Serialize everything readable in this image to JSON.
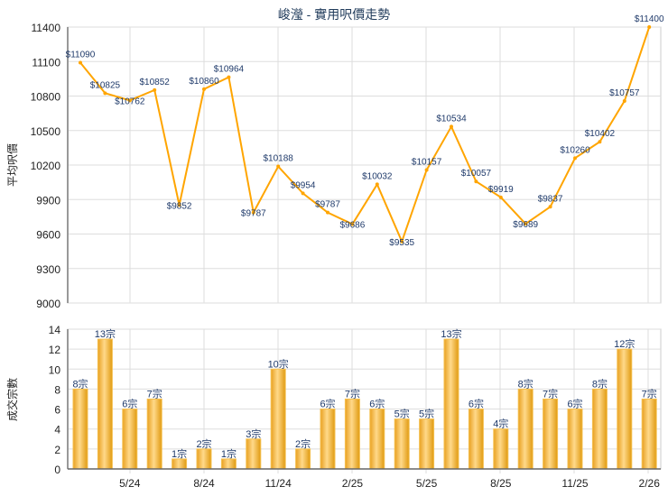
{
  "chart_data": [
    {
      "type": "line",
      "title": "峻瀅 - 實用呎價走勢",
      "ylabel": "平均呎價",
      "xlabel": "",
      "ylim": [
        9000,
        11400
      ],
      "yticks": [
        9000,
        9300,
        9600,
        9900,
        10200,
        10500,
        10800,
        11100,
        11400
      ],
      "values": [
        11090,
        10825,
        10762,
        10852,
        9852,
        10860,
        10964,
        9787,
        10188,
        9954,
        9787,
        9686,
        10032,
        9535,
        10157,
        10534,
        10057,
        9919,
        9689,
        9837,
        10260,
        10402,
        10757,
        11400
      ],
      "label_prefix": "$",
      "color": "#FFA500",
      "grid": true
    },
    {
      "type": "bar",
      "ylabel": "成交宗數",
      "ylim": [
        0,
        14
      ],
      "yticks": [
        0,
        2,
        4,
        6,
        8,
        10,
        12,
        14
      ],
      "values": [
        8,
        13,
        6,
        7,
        1,
        2,
        1,
        3,
        10,
        2,
        6,
        7,
        6,
        5,
        5,
        13,
        6,
        4,
        8,
        7,
        6,
        8,
        12,
        7
      ],
      "label_suffix": "宗",
      "xtick_labels": [
        {
          "index": 2,
          "label": "5/24"
        },
        {
          "index": 5,
          "label": "8/24"
        },
        {
          "index": 8,
          "label": "11/24"
        },
        {
          "index": 11,
          "label": "2/25"
        },
        {
          "index": 14,
          "label": "5/25"
        },
        {
          "index": 17,
          "label": "8/25"
        },
        {
          "index": 20,
          "label": "11/25"
        },
        {
          "index": 23,
          "label": "2/26"
        }
      ],
      "color": "#F0B030",
      "grid": true
    }
  ]
}
